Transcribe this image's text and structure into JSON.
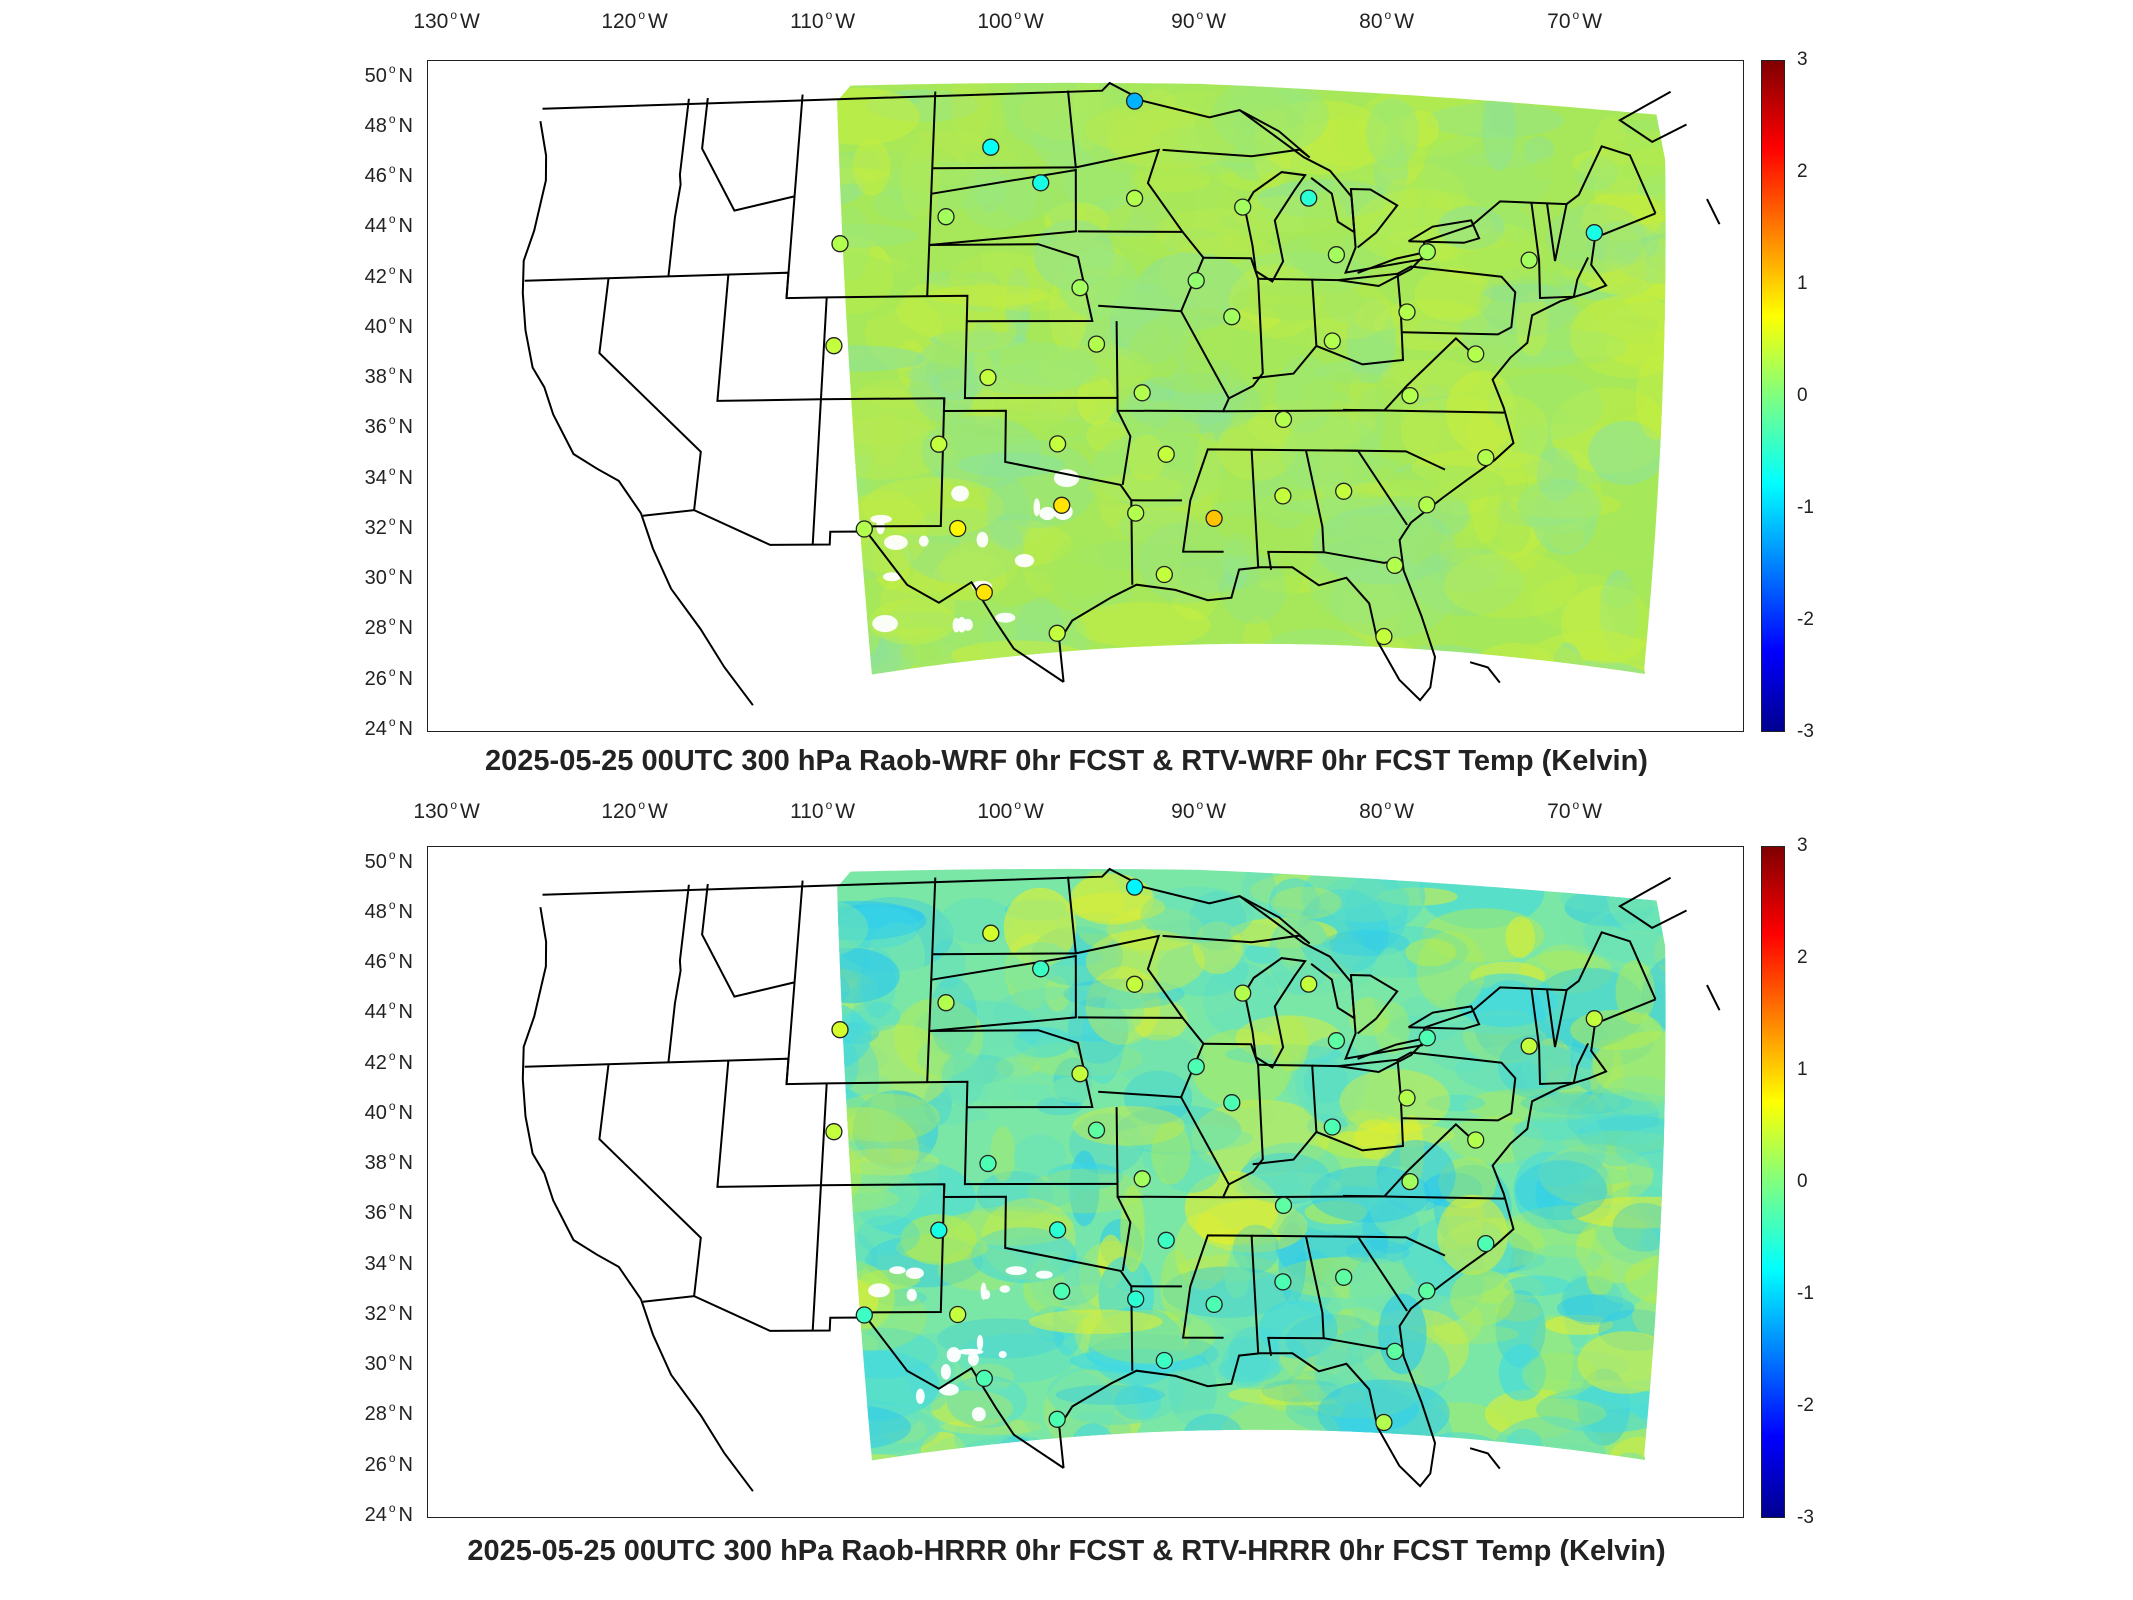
{
  "panels": [
    {
      "title": "2025-05-25 00UTC 300 hPa Raob-WRF 0hr FCST & RTV-WRF 0hr FCST Temp (Kelvin)",
      "field_palette": [
        "#a6e85a",
        "#9be87a",
        "#b8ea4e",
        "#8de39a",
        "#c6ee3e"
      ],
      "stations": [
        {
          "lon": -93.5,
          "lat": 48.6,
          "value": -1.2
        },
        {
          "lon": -101.0,
          "lat": 46.8,
          "value": -0.7
        },
        {
          "lon": -98.4,
          "lat": 45.4,
          "value": -0.6
        },
        {
          "lon": -93.6,
          "lat": 44.8,
          "value": 0.3
        },
        {
          "lon": -88.1,
          "lat": 44.5,
          "value": 0.2
        },
        {
          "lon": -84.7,
          "lat": 44.9,
          "value": -0.5
        },
        {
          "lon": -70.3,
          "lat": 43.9,
          "value": -0.6
        },
        {
          "lon": -103.2,
          "lat": 44.1,
          "value": 0.2
        },
        {
          "lon": -108.5,
          "lat": 43.1,
          "value": 0.3
        },
        {
          "lon": -73.8,
          "lat": 42.7,
          "value": 0.2
        },
        {
          "lon": -78.9,
          "lat": 42.9,
          "value": 0.2
        },
        {
          "lon": -83.5,
          "lat": 42.7,
          "value": 0.2
        },
        {
          "lon": -90.6,
          "lat": 41.6,
          "value": 0.1
        },
        {
          "lon": -96.4,
          "lat": 41.3,
          "value": 0.2
        },
        {
          "lon": -88.9,
          "lat": 40.2,
          "value": 0.2
        },
        {
          "lon": -80.2,
          "lat": 40.5,
          "value": 0.3
        },
        {
          "lon": -108.5,
          "lat": 39.1,
          "value": 0.4
        },
        {
          "lon": -95.6,
          "lat": 39.1,
          "value": 0.3
        },
        {
          "lon": -84.0,
          "lat": 39.3,
          "value": 0.3
        },
        {
          "lon": -77.0,
          "lat": 38.9,
          "value": 0.3
        },
        {
          "lon": -100.9,
          "lat": 37.8,
          "value": 0.4
        },
        {
          "lon": -93.4,
          "lat": 37.2,
          "value": 0.3
        },
        {
          "lon": -80.4,
          "lat": 37.2,
          "value": 0.3
        },
        {
          "lon": -86.6,
          "lat": 36.2,
          "value": 0.3
        },
        {
          "lon": -103.2,
          "lat": 35.2,
          "value": 0.4
        },
        {
          "lon": -97.5,
          "lat": 35.2,
          "value": 0.4
        },
        {
          "lon": -92.3,
          "lat": 34.8,
          "value": 0.4
        },
        {
          "lon": -77.0,
          "lat": 34.8,
          "value": 0.3
        },
        {
          "lon": -83.9,
          "lat": 33.4,
          "value": 0.4
        },
        {
          "lon": -86.8,
          "lat": 33.2,
          "value": 0.4
        },
        {
          "lon": -97.3,
          "lat": 32.8,
          "value": 0.9
        },
        {
          "lon": -93.8,
          "lat": 32.5,
          "value": 0.3
        },
        {
          "lon": -90.1,
          "lat": 32.3,
          "value": 1.1
        },
        {
          "lon": -80.0,
          "lat": 32.9,
          "value": 0.3
        },
        {
          "lon": -106.6,
          "lat": 31.9,
          "value": 0.3
        },
        {
          "lon": -102.2,
          "lat": 31.9,
          "value": 0.8
        },
        {
          "lon": -81.7,
          "lat": 30.5,
          "value": 0.3
        },
        {
          "lon": -92.5,
          "lat": 30.1,
          "value": 0.4
        },
        {
          "lon": -100.9,
          "lat": 29.4,
          "value": 0.9
        },
        {
          "lon": -97.5,
          "lat": 27.8,
          "value": 0.4
        },
        {
          "lon": -82.4,
          "lat": 27.7,
          "value": 0.4
        }
      ]
    },
    {
      "title": "2025-05-25 00UTC 300 hPa Raob-HRRR 0hr FCST & RTV-HRRR 0hr FCST Temp (Kelvin)",
      "field_palette": [
        "#7be7a6",
        "#3ed9e6",
        "#b9ec4c",
        "#62e0c0",
        "#e6ef2a",
        "#28c8f0"
      ],
      "stations": [
        {
          "lon": -93.5,
          "lat": 48.6,
          "value": -0.8
        },
        {
          "lon": -101.0,
          "lat": 46.8,
          "value": 0.5
        },
        {
          "lon": -98.4,
          "lat": 45.4,
          "value": -0.4
        },
        {
          "lon": -93.6,
          "lat": 44.8,
          "value": 0.4
        },
        {
          "lon": -88.1,
          "lat": 44.5,
          "value": 0.3
        },
        {
          "lon": -84.7,
          "lat": 44.9,
          "value": 0.4
        },
        {
          "lon": -70.3,
          "lat": 43.9,
          "value": 0.4
        },
        {
          "lon": -103.2,
          "lat": 44.1,
          "value": 0.3
        },
        {
          "lon": -108.5,
          "lat": 43.1,
          "value": 0.5
        },
        {
          "lon": -73.8,
          "lat": 42.7,
          "value": 0.4
        },
        {
          "lon": -78.9,
          "lat": 42.9,
          "value": -0.3
        },
        {
          "lon": -83.5,
          "lat": 42.7,
          "value": -0.2
        },
        {
          "lon": -90.6,
          "lat": 41.6,
          "value": -0.3
        },
        {
          "lon": -96.4,
          "lat": 41.3,
          "value": 0.4
        },
        {
          "lon": -88.9,
          "lat": 40.2,
          "value": -0.3
        },
        {
          "lon": -80.2,
          "lat": 40.5,
          "value": 0.3
        },
        {
          "lon": -108.5,
          "lat": 39.1,
          "value": 0.4
        },
        {
          "lon": -95.6,
          "lat": 39.1,
          "value": -0.2
        },
        {
          "lon": -84.0,
          "lat": 39.3,
          "value": -0.3
        },
        {
          "lon": -77.0,
          "lat": 38.9,
          "value": 0.3
        },
        {
          "lon": -100.9,
          "lat": 37.8,
          "value": -0.3
        },
        {
          "lon": -93.4,
          "lat": 37.2,
          "value": 0.2
        },
        {
          "lon": -80.4,
          "lat": 37.2,
          "value": 0.2
        },
        {
          "lon": -86.6,
          "lat": 36.2,
          "value": -0.2
        },
        {
          "lon": -103.2,
          "lat": 35.2,
          "value": -0.6
        },
        {
          "lon": -97.5,
          "lat": 35.2,
          "value": -0.5
        },
        {
          "lon": -92.3,
          "lat": 34.8,
          "value": -0.4
        },
        {
          "lon": -77.0,
          "lat": 34.8,
          "value": -0.3
        },
        {
          "lon": -83.9,
          "lat": 33.4,
          "value": -0.2
        },
        {
          "lon": -86.8,
          "lat": 33.2,
          "value": -0.3
        },
        {
          "lon": -97.3,
          "lat": 32.8,
          "value": -0.3
        },
        {
          "lon": -93.8,
          "lat": 32.5,
          "value": -0.5
        },
        {
          "lon": -90.1,
          "lat": 32.3,
          "value": -0.3
        },
        {
          "lon": -80.0,
          "lat": 32.9,
          "value": -0.2
        },
        {
          "lon": -106.6,
          "lat": 31.9,
          "value": -0.4
        },
        {
          "lon": -102.2,
          "lat": 31.9,
          "value": 0.4
        },
        {
          "lon": -81.7,
          "lat": 30.5,
          "value": -0.2
        },
        {
          "lon": -92.5,
          "lat": 30.1,
          "value": -0.4
        },
        {
          "lon": -100.9,
          "lat": 29.4,
          "value": -0.3
        },
        {
          "lon": -97.5,
          "lat": 27.8,
          "value": -0.3
        },
        {
          "lon": -82.4,
          "lat": 27.7,
          "value": 0.3
        }
      ]
    }
  ],
  "axes": {
    "lon_ticks": [
      -130,
      -120,
      -110,
      -100,
      -90,
      -80,
      -70
    ],
    "lon_labels": [
      "130",
      "120",
      "110",
      "100",
      "90",
      "80",
      "70"
    ],
    "lon_suffix": "W",
    "lat_ticks": [
      50,
      48,
      46,
      44,
      42,
      40,
      38,
      36,
      34,
      32,
      30,
      28,
      26,
      24
    ],
    "lat_labels": [
      "50",
      "48",
      "46",
      "44",
      "42",
      "40",
      "38",
      "36",
      "34",
      "32",
      "30",
      "28",
      "26",
      "24"
    ],
    "lat_suffix": "N",
    "degree_symbol": "o",
    "lon_range": [
      -132,
      -64
    ],
    "lat_range": [
      24,
      50.5
    ]
  },
  "colorbar": {
    "ticks": [
      "3",
      "2",
      "1",
      "0",
      "-1",
      "-2",
      "-3"
    ],
    "range": [
      -3,
      3
    ],
    "colormap": "jet"
  },
  "colors": {
    "outline": "#000000",
    "station_stroke": "#222222"
  }
}
